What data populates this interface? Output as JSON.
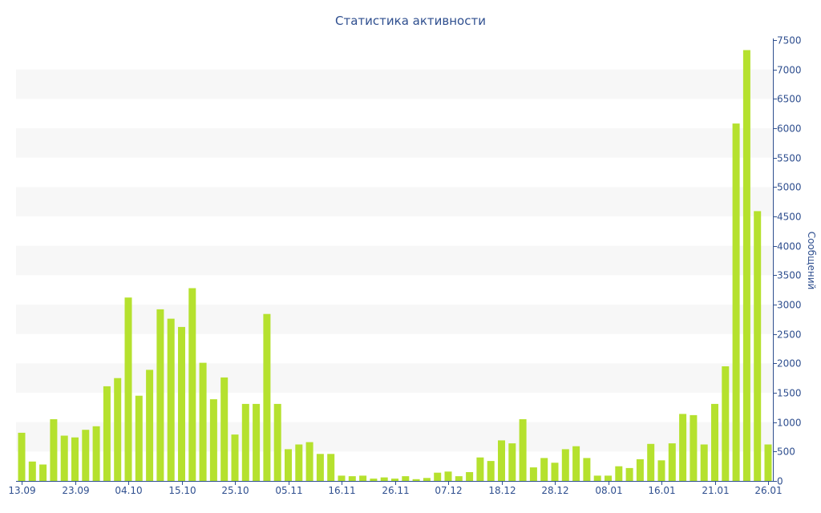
{
  "chart_data": {
    "type": "bar",
    "title": "Статистика активности",
    "xlabel": "",
    "ylabel": "Сообщений",
    "ylim": [
      0,
      7500
    ],
    "yticks": [
      0,
      500,
      1000,
      1500,
      2000,
      2500,
      3000,
      3500,
      4000,
      4500,
      5000,
      5500,
      6000,
      6500,
      7000,
      7500
    ],
    "y_axis_side": "right",
    "grid": "alternating horizontal bands",
    "bar_color": "#b5e12e",
    "band_color": "#f7f7f7",
    "axis_color": "#2f4f8f",
    "x_tick_labels": [
      {
        "index": 0,
        "label": "13.09"
      },
      {
        "index": 5,
        "label": "23.09"
      },
      {
        "index": 10,
        "label": "04.10"
      },
      {
        "index": 15,
        "label": "15.10"
      },
      {
        "index": 20,
        "label": "25.10"
      },
      {
        "index": 25,
        "label": "05.11"
      },
      {
        "index": 30,
        "label": "16.11"
      },
      {
        "index": 35,
        "label": "26.11"
      },
      {
        "index": 40,
        "label": "07.12"
      },
      {
        "index": 45,
        "label": "18.12"
      },
      {
        "index": 50,
        "label": "28.12"
      },
      {
        "index": 55,
        "label": "08.01"
      },
      {
        "index": 60,
        "label": "16.01"
      },
      {
        "index": 65,
        "label": "21.01"
      },
      {
        "index": 70,
        "label": "26.01"
      }
    ],
    "values": [
      820,
      330,
      280,
      1050,
      770,
      740,
      870,
      930,
      1610,
      1750,
      3120,
      1450,
      1890,
      2920,
      2760,
      2620,
      3280,
      2010,
      1390,
      1760,
      790,
      1310,
      1310,
      2840,
      1310,
      540,
      620,
      660,
      460,
      460,
      90,
      80,
      90,
      40,
      60,
      40,
      80,
      30,
      50,
      140,
      160,
      80,
      150,
      400,
      340,
      690,
      640,
      1050,
      230,
      390,
      310,
      540,
      590,
      390,
      90,
      90,
      250,
      220,
      370,
      630,
      350,
      640,
      1140,
      1120,
      620,
      1310,
      1950,
      6080,
      7330,
      4590,
      620
    ]
  }
}
